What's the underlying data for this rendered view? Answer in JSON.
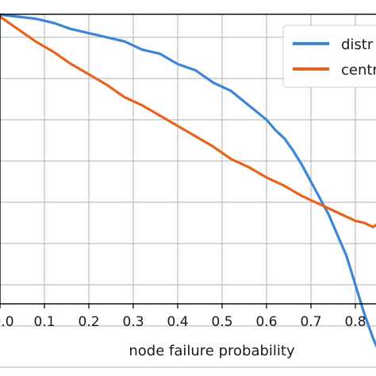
{
  "chart_data": {
    "type": "line",
    "title": "",
    "xlabel": "node failure probability",
    "ylabel": "",
    "xlim": [
      0.0,
      0.86
    ],
    "ylim": [
      0.0,
      1.0
    ],
    "x_ticks": [
      0.0,
      0.1,
      0.2,
      0.3,
      0.4,
      0.5,
      0.6,
      0.7,
      0.8
    ],
    "x_tick_labels": [
      "0.0",
      "0.1",
      "0.2",
      "0.3",
      "0.4",
      "0.5",
      "0.6",
      "0.7",
      "0.8"
    ],
    "y_gridlines": [
      0.1,
      0.2,
      0.3,
      0.4,
      0.5,
      0.6,
      0.7,
      0.8,
      0.9
    ],
    "grid": true,
    "legend_position": "top-right",
    "series": [
      {
        "name": "distr",
        "color": "#3b86d6",
        "x": [
          0.0,
          0.04,
          0.08,
          0.12,
          0.16,
          0.2,
          0.24,
          0.28,
          0.32,
          0.36,
          0.4,
          0.44,
          0.48,
          0.52,
          0.56,
          0.6,
          0.62,
          0.64,
          0.66,
          0.68,
          0.7,
          0.72,
          0.74,
          0.76,
          0.78,
          0.8,
          0.82,
          0.84,
          0.86
        ],
        "y": [
          0.955,
          0.95,
          0.945,
          0.935,
          0.92,
          0.91,
          0.9,
          0.89,
          0.87,
          0.86,
          0.835,
          0.82,
          0.79,
          0.77,
          0.735,
          0.7,
          0.675,
          0.655,
          0.625,
          0.59,
          0.55,
          0.51,
          0.47,
          0.42,
          0.37,
          0.3,
          0.23,
          0.17,
          0.12
        ]
      },
      {
        "name": "centr",
        "color": "#e8641c",
        "x": [
          0.0,
          0.04,
          0.08,
          0.12,
          0.16,
          0.2,
          0.24,
          0.28,
          0.32,
          0.36,
          0.4,
          0.44,
          0.48,
          0.52,
          0.56,
          0.6,
          0.64,
          0.68,
          0.72,
          0.76,
          0.8,
          0.82,
          0.84,
          0.86
        ],
        "y": [
          0.95,
          0.92,
          0.89,
          0.865,
          0.835,
          0.81,
          0.785,
          0.755,
          0.735,
          0.71,
          0.685,
          0.66,
          0.635,
          0.605,
          0.585,
          0.56,
          0.54,
          0.515,
          0.495,
          0.475,
          0.455,
          0.45,
          0.44,
          0.455
        ]
      }
    ]
  }
}
